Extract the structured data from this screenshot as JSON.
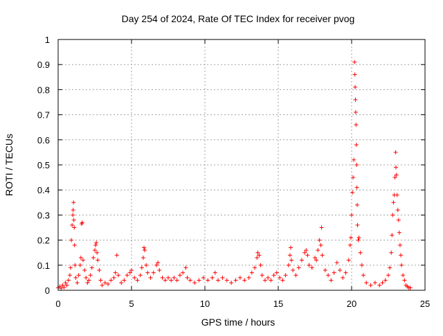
{
  "chart_data": {
    "type": "scatter",
    "title": "Day 254 of 2024, Rate Of TEC Index for receiver pvog",
    "xlabel": "GPS time / hours",
    "ylabel": "ROTI / TECUs",
    "xlim": [
      0,
      25
    ],
    "ylim": [
      0,
      1
    ],
    "x_ticks": [
      0,
      5,
      10,
      15,
      20,
      25
    ],
    "y_ticks": [
      0,
      0.1,
      0.2,
      0.3,
      0.4,
      0.5,
      0.6,
      0.7,
      0.8,
      0.9,
      1
    ],
    "x_tick_labels": [
      "0",
      "5",
      "10",
      "15",
      "20",
      "25"
    ],
    "y_tick_labels": [
      "0",
      "0.1",
      "0.2",
      "0.3",
      "0.4",
      "0.5",
      "0.6",
      "0.7",
      "0.8",
      "0.9",
      "1"
    ],
    "grid": true,
    "marker": "+",
    "series": [
      {
        "name": "ROTI",
        "color": "#ff0000",
        "points": [
          [
            0.0,
            0.01
          ],
          [
            0.1,
            0.015
          ],
          [
            0.2,
            0.008
          ],
          [
            0.3,
            0.02
          ],
          [
            0.4,
            0.012
          ],
          [
            0.5,
            0.03
          ],
          [
            0.6,
            0.02
          ],
          [
            0.7,
            0.04
          ],
          [
            0.8,
            0.06
          ],
          [
            0.85,
            0.09
          ],
          [
            0.9,
            0.2
          ],
          [
            0.95,
            0.26
          ],
          [
            1.0,
            0.3
          ],
          [
            1.02,
            0.32
          ],
          [
            1.05,
            0.35
          ],
          [
            1.07,
            0.28
          ],
          [
            1.1,
            0.25
          ],
          [
            1.12,
            0.18
          ],
          [
            1.15,
            0.1
          ],
          [
            1.2,
            0.05
          ],
          [
            1.3,
            0.03
          ],
          [
            1.4,
            0.06
          ],
          [
            1.5,
            0.1
          ],
          [
            1.55,
            0.13
          ],
          [
            1.6,
            0.265
          ],
          [
            1.65,
            0.27
          ],
          [
            1.7,
            0.12
          ],
          [
            1.8,
            0.08
          ],
          [
            1.9,
            0.05
          ],
          [
            2.0,
            0.03
          ],
          [
            2.1,
            0.04
          ],
          [
            2.2,
            0.06
          ],
          [
            2.3,
            0.09
          ],
          [
            2.4,
            0.13
          ],
          [
            2.5,
            0.16
          ],
          [
            2.55,
            0.18
          ],
          [
            2.6,
            0.19
          ],
          [
            2.65,
            0.15
          ],
          [
            2.7,
            0.12
          ],
          [
            2.8,
            0.08
          ],
          [
            2.9,
            0.04
          ],
          [
            3.0,
            0.02
          ],
          [
            3.2,
            0.03
          ],
          [
            3.4,
            0.025
          ],
          [
            3.6,
            0.04
          ],
          [
            3.8,
            0.05
          ],
          [
            3.9,
            0.07
          ],
          [
            4.0,
            0.14
          ],
          [
            4.1,
            0.06
          ],
          [
            4.3,
            0.03
          ],
          [
            4.5,
            0.04
          ],
          [
            4.7,
            0.06
          ],
          [
            4.9,
            0.07
          ],
          [
            5.0,
            0.08
          ],
          [
            5.2,
            0.05
          ],
          [
            5.4,
            0.04
          ],
          [
            5.6,
            0.06
          ],
          [
            5.7,
            0.09
          ],
          [
            5.8,
            0.13
          ],
          [
            5.85,
            0.17
          ],
          [
            5.9,
            0.16
          ],
          [
            6.0,
            0.1
          ],
          [
            6.1,
            0.07
          ],
          [
            6.3,
            0.05
          ],
          [
            6.5,
            0.07
          ],
          [
            6.7,
            0.1
          ],
          [
            6.8,
            0.11
          ],
          [
            6.9,
            0.08
          ],
          [
            7.1,
            0.05
          ],
          [
            7.3,
            0.04
          ],
          [
            7.5,
            0.05
          ],
          [
            7.7,
            0.04
          ],
          [
            7.9,
            0.05
          ],
          [
            8.1,
            0.04
          ],
          [
            8.3,
            0.06
          ],
          [
            8.5,
            0.07
          ],
          [
            8.7,
            0.09
          ],
          [
            8.8,
            0.05
          ],
          [
            9.0,
            0.04
          ],
          [
            9.3,
            0.03
          ],
          [
            9.6,
            0.04
          ],
          [
            9.9,
            0.05
          ],
          [
            10.2,
            0.04
          ],
          [
            10.5,
            0.05
          ],
          [
            10.7,
            0.07
          ],
          [
            10.9,
            0.04
          ],
          [
            11.2,
            0.05
          ],
          [
            11.5,
            0.04
          ],
          [
            11.8,
            0.03
          ],
          [
            12.1,
            0.04
          ],
          [
            12.4,
            0.05
          ],
          [
            12.7,
            0.04
          ],
          [
            13.0,
            0.05
          ],
          [
            13.2,
            0.07
          ],
          [
            13.4,
            0.09
          ],
          [
            13.55,
            0.13
          ],
          [
            13.6,
            0.15
          ],
          [
            13.7,
            0.14
          ],
          [
            13.8,
            0.1
          ],
          [
            13.9,
            0.06
          ],
          [
            14.1,
            0.04
          ],
          [
            14.3,
            0.05
          ],
          [
            14.5,
            0.04
          ],
          [
            14.7,
            0.06
          ],
          [
            14.9,
            0.07
          ],
          [
            15.1,
            0.05
          ],
          [
            15.3,
            0.04
          ],
          [
            15.5,
            0.06
          ],
          [
            15.7,
            0.1
          ],
          [
            15.8,
            0.14
          ],
          [
            15.85,
            0.17
          ],
          [
            15.9,
            0.12
          ],
          [
            16.0,
            0.08
          ],
          [
            16.2,
            0.06
          ],
          [
            16.4,
            0.09
          ],
          [
            16.6,
            0.12
          ],
          [
            16.8,
            0.15
          ],
          [
            16.9,
            0.16
          ],
          [
            17.0,
            0.14
          ],
          [
            17.1,
            0.1
          ],
          [
            17.3,
            0.09
          ],
          [
            17.5,
            0.13
          ],
          [
            17.6,
            0.12
          ],
          [
            17.7,
            0.16
          ],
          [
            17.8,
            0.2
          ],
          [
            17.9,
            0.18
          ],
          [
            17.95,
            0.25
          ],
          [
            18.0,
            0.14
          ],
          [
            18.2,
            0.08
          ],
          [
            18.4,
            0.06
          ],
          [
            18.6,
            0.04
          ],
          [
            18.8,
            0.07
          ],
          [
            19.0,
            0.11
          ],
          [
            19.2,
            0.08
          ],
          [
            19.4,
            0.05
          ],
          [
            19.6,
            0.07
          ],
          [
            19.8,
            0.12
          ],
          [
            19.9,
            0.18
          ],
          [
            19.95,
            0.21
          ],
          [
            20.0,
            0.3
          ],
          [
            20.05,
            0.39
          ],
          [
            20.1,
            0.45
          ],
          [
            20.15,
            0.52
          ],
          [
            20.2,
            0.91
          ],
          [
            20.22,
            0.86
          ],
          [
            20.24,
            0.81
          ],
          [
            20.26,
            0.76
          ],
          [
            20.28,
            0.71
          ],
          [
            20.3,
            0.66
          ],
          [
            20.32,
            0.58
          ],
          [
            20.34,
            0.5
          ],
          [
            20.36,
            0.41
          ],
          [
            20.38,
            0.34
          ],
          [
            20.4,
            0.26
          ],
          [
            20.45,
            0.2
          ],
          [
            20.5,
            0.21
          ],
          [
            20.6,
            0.15
          ],
          [
            20.7,
            0.1
          ],
          [
            20.8,
            0.06
          ],
          [
            21.0,
            0.03
          ],
          [
            21.3,
            0.02
          ],
          [
            21.6,
            0.03
          ],
          [
            21.9,
            0.02
          ],
          [
            22.1,
            0.03
          ],
          [
            22.3,
            0.04
          ],
          [
            22.5,
            0.06
          ],
          [
            22.6,
            0.09
          ],
          [
            22.7,
            0.15
          ],
          [
            22.75,
            0.22
          ],
          [
            22.8,
            0.3
          ],
          [
            22.85,
            0.35
          ],
          [
            22.9,
            0.38
          ],
          [
            22.95,
            0.45
          ],
          [
            23.0,
            0.55
          ],
          [
            23.02,
            0.49
          ],
          [
            23.05,
            0.46
          ],
          [
            23.1,
            0.38
          ],
          [
            23.15,
            0.32
          ],
          [
            23.2,
            0.28
          ],
          [
            23.25,
            0.23
          ],
          [
            23.3,
            0.18
          ],
          [
            23.35,
            0.14
          ],
          [
            23.4,
            0.1
          ],
          [
            23.5,
            0.06
          ],
          [
            23.6,
            0.04
          ],
          [
            23.7,
            0.02
          ],
          [
            23.8,
            0.015
          ],
          [
            23.9,
            0.01
          ],
          [
            24.0,
            0.01
          ]
        ]
      }
    ]
  }
}
